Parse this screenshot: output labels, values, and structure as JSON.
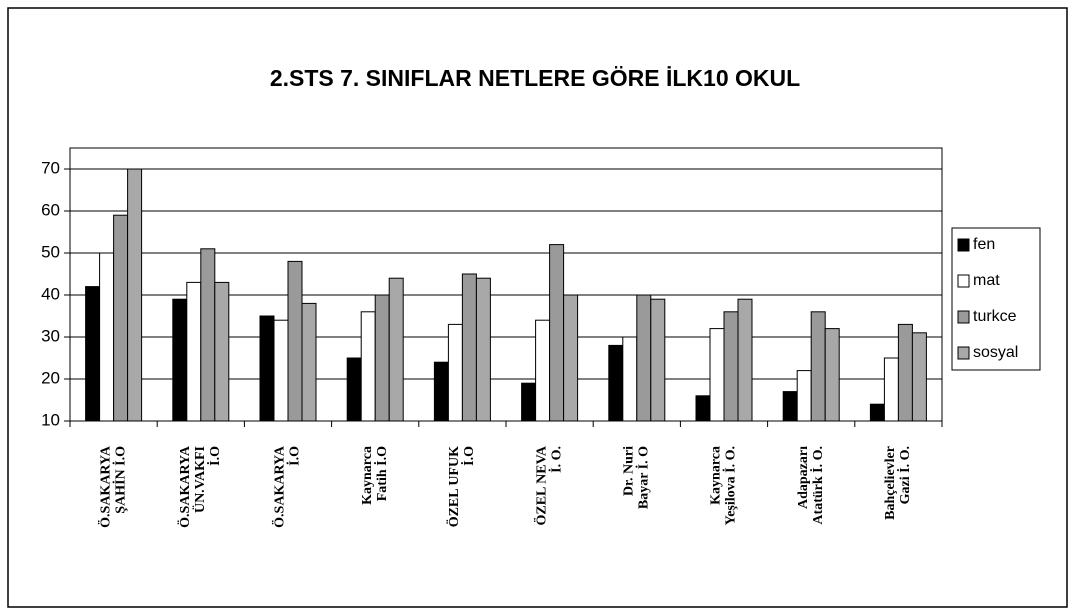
{
  "chart_data": {
    "type": "bar",
    "title": "2.STS 7. SINIFLAR NETLERE GÖRE İLK10 OKUL",
    "categories": [
      [
        "Ö.SAKARYA",
        "ŞAHİN İ.O"
      ],
      [
        "Ö.SAKARYA",
        "ÜN.VAKFI",
        "İ.O"
      ],
      [
        "Ö.SAKARYA",
        "İ.O"
      ],
      [
        "Kaynarca",
        "Fatih İ.O"
      ],
      [
        "ÖZEL UFUK",
        "İ.O"
      ],
      [
        "ÖZEL NEVA",
        "İ. O."
      ],
      [
        "Dr. Nuri",
        "Bayar İ. O"
      ],
      [
        "Kaynarca",
        "Yeşilova İ. O."
      ],
      [
        "Adapazarı",
        "Atatürk İ. O."
      ],
      [
        "Bahçelievler",
        "Gazi İ. O."
      ]
    ],
    "series": [
      {
        "name": "fen",
        "color": "#000000",
        "values": [
          42,
          39,
          35,
          25,
          24,
          19,
          28,
          16,
          17,
          14
        ]
      },
      {
        "name": "mat",
        "color": "#ffffff",
        "values": [
          50,
          43,
          34,
          36,
          33,
          34,
          30,
          32,
          22,
          25
        ]
      },
      {
        "name": "turkce",
        "color": "#9a9a9a",
        "values": [
          59,
          51,
          48,
          40,
          45,
          52,
          40,
          36,
          36,
          33
        ]
      },
      {
        "name": "sosyal",
        "color": "#a8a8a8",
        "values": [
          70,
          43,
          38,
          44,
          44,
          40,
          39,
          39,
          32,
          31
        ]
      }
    ],
    "ylim": [
      10,
      75
    ],
    "yticks": [
      10,
      20,
      30,
      40,
      50,
      60,
      70
    ],
    "grid": true,
    "legend": "right"
  }
}
